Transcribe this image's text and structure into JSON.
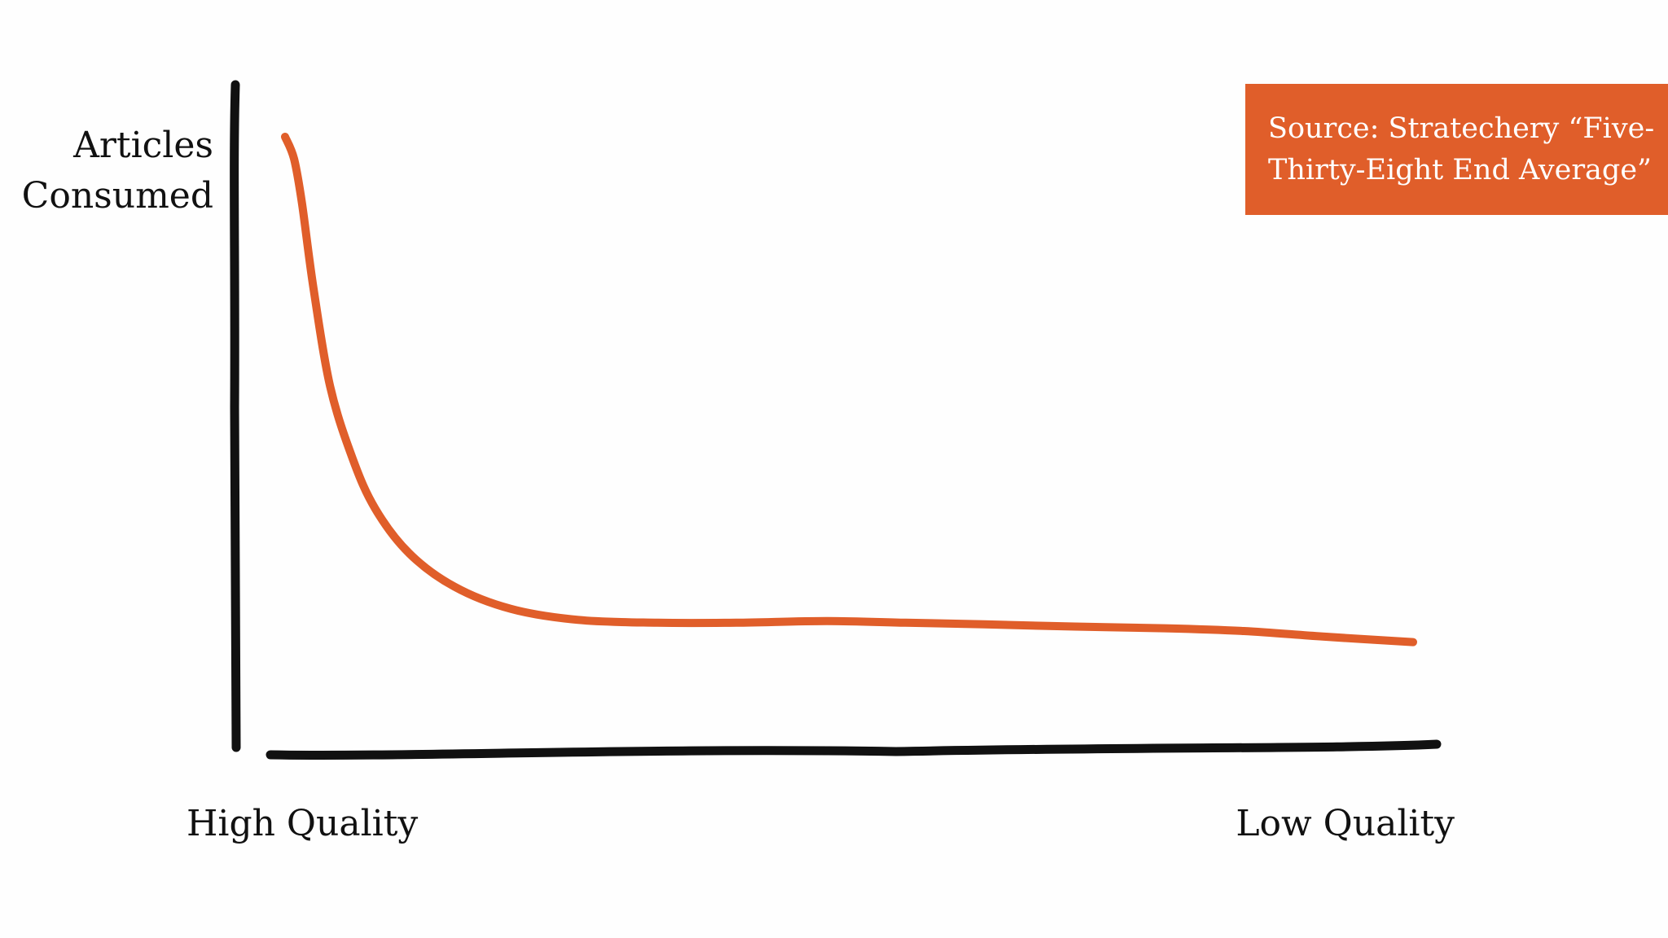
{
  "chart_data": {
    "type": "line",
    "title": "",
    "ylabel_lines": [
      "Articles",
      "Consumed"
    ],
    "x_start_label": "High Quality",
    "x_end_label": "Low Quality",
    "series": [
      {
        "values_desc": "qualitative long-tail curve; x from high quality (0) to low quality (100), y relative articles consumed (0-100)",
        "x": [
          0,
          0.8,
          1.5,
          2.5,
          4,
          6,
          8,
          11,
          15,
          20,
          26,
          33,
          40,
          48,
          55,
          62,
          70,
          78,
          85,
          92,
          100
        ],
        "y": [
          100,
          96,
          88,
          73,
          55,
          42,
          33,
          25,
          19,
          15,
          13,
          12.5,
          12.5,
          12.8,
          12.5,
          12.2,
          11.8,
          11.5,
          11,
          10,
          9
        ]
      }
    ],
    "xlim": [
      0,
      100
    ],
    "ylim": [
      0,
      100
    ],
    "grid": false,
    "legend": "none",
    "colors": {
      "curve": "#e05e2a",
      "axes": "#111111"
    }
  },
  "annotation": {
    "source_lines": [
      "Source: Stratechery “Five-",
      "Thirty-Eight End Average”"
    ],
    "background": "#e05e2a",
    "text_color": "#ffffff"
  }
}
